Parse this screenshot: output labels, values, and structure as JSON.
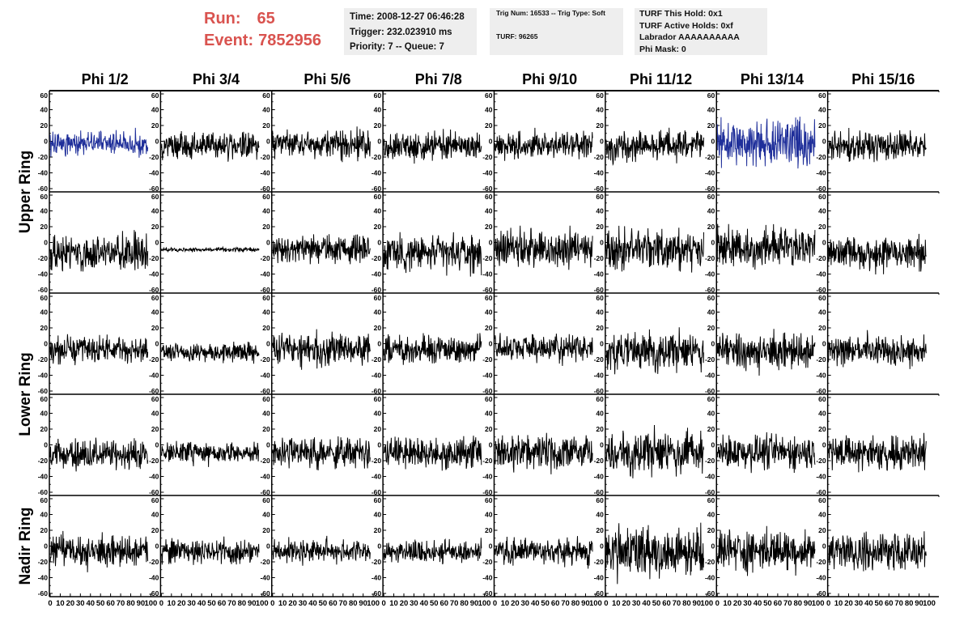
{
  "header": {
    "run_label": "Run:",
    "run_value": "65",
    "event_label": "Event:",
    "event_value": "7852956",
    "time_box": [
      "Time: 2008-12-27 06:46:28",
      "Trigger: 232.023910 ms",
      "Priority: 7 -- Queue: 7"
    ],
    "trig_box": [
      "Trig Num: 16533 -- Trig Type: Soft",
      "TURF: 96265"
    ],
    "turf_box": [
      "TURF This Hold: 0x1",
      "TURF Active Holds: 0xf",
      "Labrador AAAAAAAAAA",
      "Phi Mask: 0"
    ]
  },
  "colors": {
    "accent_red": "#d9534f",
    "trace_black": "#000000",
    "trace_blue": "#1f2f9a",
    "info_background": "#eeeeee"
  },
  "chart_data": {
    "type": "line",
    "columns": [
      "Phi 1/2",
      "Phi 3/4",
      "Phi 5/6",
      "Phi 7/8",
      "Phi 9/10",
      "Phi 11/12",
      "Phi 13/14",
      "Phi 15/16"
    ],
    "row_titles": [
      "Upper Ring",
      "Lower Ring",
      "Nadir Ring"
    ],
    "rows_per_title": [
      2,
      2,
      1
    ],
    "xlim": [
      0,
      100
    ],
    "ylim": [
      -60,
      60
    ],
    "x_tick_labels": [
      "0",
      "10",
      "20",
      "30",
      "40",
      "50",
      "60",
      "70",
      "80",
      "90",
      "100"
    ],
    "y_tick_labels": [
      "60",
      "40",
      "20",
      "0",
      "-20",
      "-40",
      "-60"
    ],
    "samples_per_trace": 260,
    "x_range_of_traces": [
      0,
      97
    ],
    "grid": false,
    "panels": [
      [
        {
          "color": "blue",
          "mean": -2,
          "amp": 9,
          "seed": 11
        },
        {
          "color": "black",
          "mean": -6,
          "amp": 10,
          "seed": 12
        },
        {
          "color": "black",
          "mean": -3,
          "amp": 11,
          "seed": 13
        },
        {
          "color": "black",
          "mean": -6,
          "amp": 11,
          "seed": 14
        },
        {
          "color": "black",
          "mean": -5,
          "amp": 10,
          "seed": 15
        },
        {
          "color": "black",
          "mean": -5,
          "amp": 12,
          "seed": 16
        },
        {
          "color": "blue",
          "mean": -2,
          "amp": 18,
          "seed": 17
        },
        {
          "color": "black",
          "mean": -6,
          "amp": 11,
          "seed": 18
        }
      ],
      [
        {
          "color": "black",
          "mean": -14,
          "amp": 14,
          "seed": 21
        },
        {
          "color": "black",
          "mean": -9,
          "amp": 1.5,
          "seed": 22
        },
        {
          "color": "black",
          "mean": -8,
          "amp": 11,
          "seed": 23
        },
        {
          "color": "black",
          "mean": -14,
          "amp": 14,
          "seed": 24
        },
        {
          "color": "black",
          "mean": -8,
          "amp": 14,
          "seed": 25
        },
        {
          "color": "black",
          "mean": -9,
          "amp": 16,
          "seed": 26
        },
        {
          "color": "black",
          "mean": -6,
          "amp": 15,
          "seed": 27
        },
        {
          "color": "black",
          "mean": -13,
          "amp": 13,
          "seed": 28
        }
      ],
      [
        {
          "color": "black",
          "mean": -8,
          "amp": 10,
          "seed": 31
        },
        {
          "color": "black",
          "mean": -10,
          "amp": 7,
          "seed": 32
        },
        {
          "color": "black",
          "mean": -8,
          "amp": 12,
          "seed": 33
        },
        {
          "color": "black",
          "mean": -8,
          "amp": 10,
          "seed": 34
        },
        {
          "color": "black",
          "mean": -5,
          "amp": 10,
          "seed": 35
        },
        {
          "color": "black",
          "mean": -10,
          "amp": 14,
          "seed": 36
        },
        {
          "color": "black",
          "mean": -10,
          "amp": 14,
          "seed": 37
        },
        {
          "color": "black",
          "mean": -8,
          "amp": 11,
          "seed": 38
        }
      ],
      [
        {
          "color": "black",
          "mean": -12,
          "amp": 11,
          "seed": 41
        },
        {
          "color": "black",
          "mean": -10,
          "amp": 8,
          "seed": 42
        },
        {
          "color": "black",
          "mean": -10,
          "amp": 12,
          "seed": 43
        },
        {
          "color": "black",
          "mean": -11,
          "amp": 12,
          "seed": 44
        },
        {
          "color": "black",
          "mean": -9,
          "amp": 13,
          "seed": 45
        },
        {
          "color": "black",
          "mean": -10,
          "amp": 16,
          "seed": 46
        },
        {
          "color": "black",
          "mean": -9,
          "amp": 13,
          "seed": 47
        },
        {
          "color": "black",
          "mean": -10,
          "amp": 13,
          "seed": 48
        }
      ],
      [
        {
          "color": "black",
          "mean": -7,
          "amp": 12,
          "seed": 51
        },
        {
          "color": "black",
          "mean": -7,
          "amp": 10,
          "seed": 52
        },
        {
          "color": "black",
          "mean": -6,
          "amp": 9,
          "seed": 53
        },
        {
          "color": "black",
          "mean": -7,
          "amp": 9,
          "seed": 54
        },
        {
          "color": "black",
          "mean": -7,
          "amp": 10,
          "seed": 55
        },
        {
          "color": "black",
          "mean": -7,
          "amp": 19,
          "seed": 56
        },
        {
          "color": "black",
          "mean": -5,
          "amp": 16,
          "seed": 57
        },
        {
          "color": "black",
          "mean": -7,
          "amp": 14,
          "seed": 58
        }
      ]
    ]
  }
}
